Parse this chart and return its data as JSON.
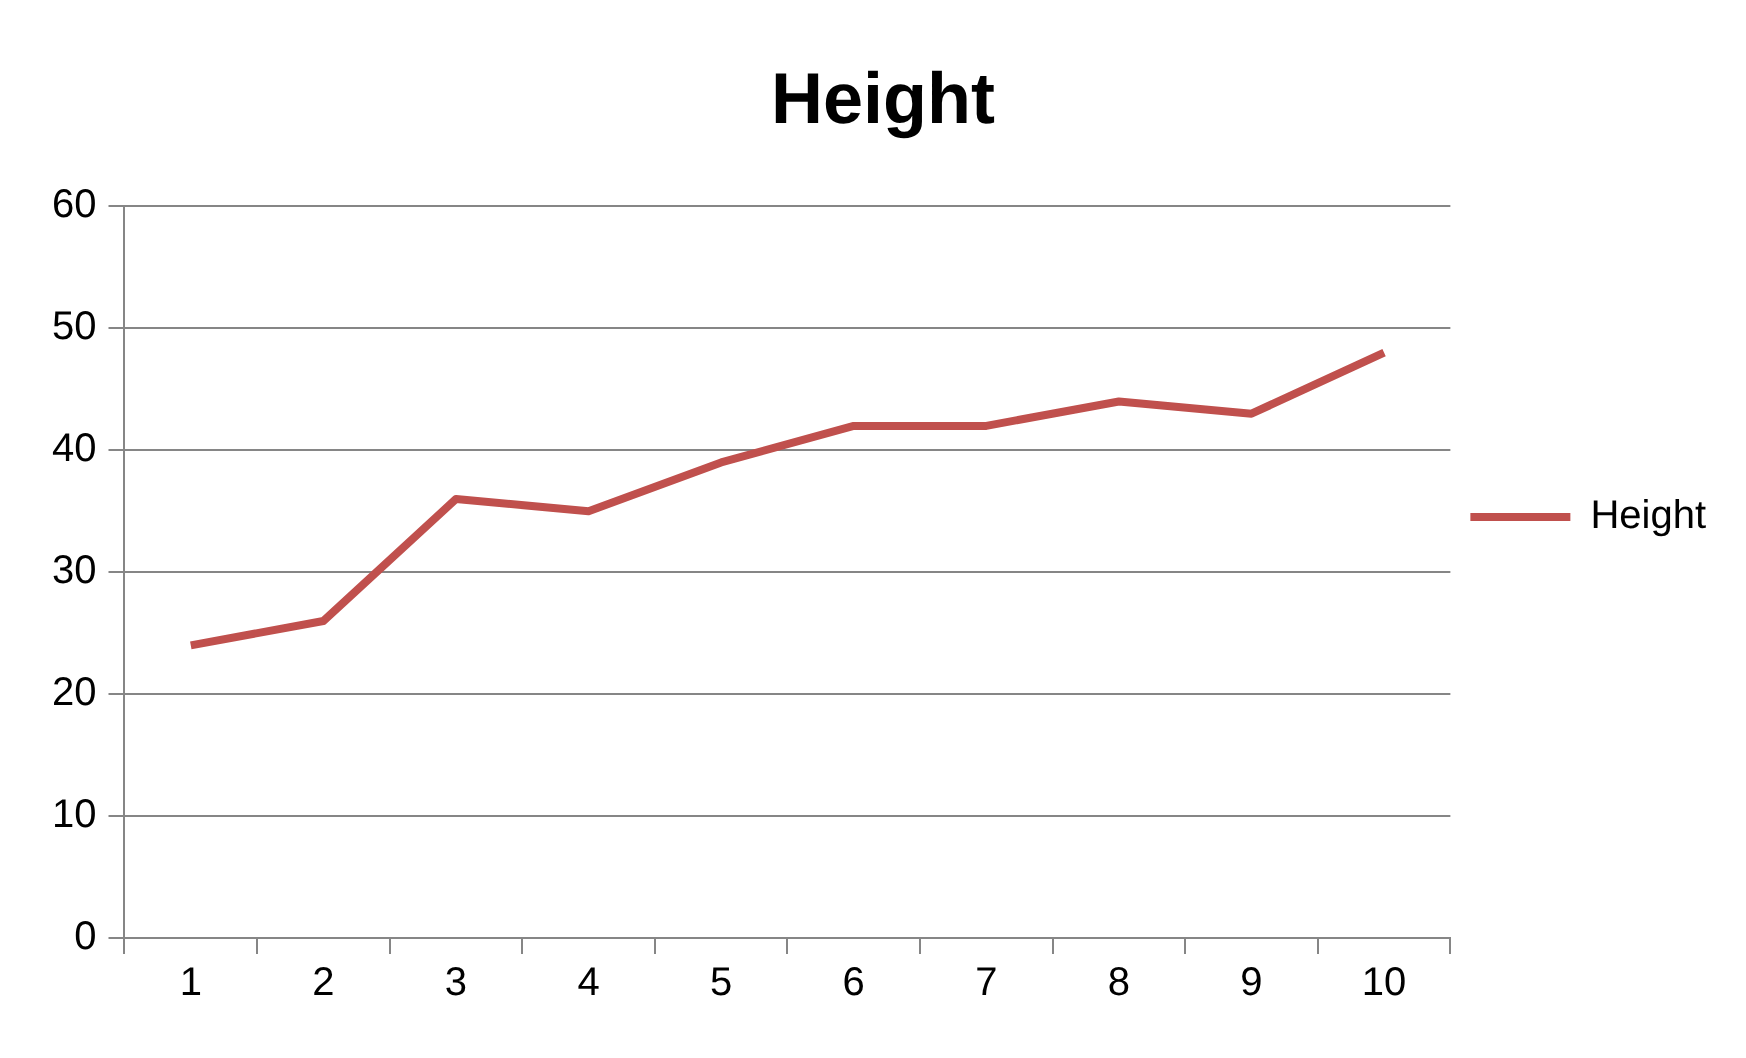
{
  "chart_data": {
    "type": "line",
    "title": "Height",
    "categories": [
      "1",
      "2",
      "3",
      "4",
      "5",
      "6",
      "7",
      "8",
      "9",
      "10"
    ],
    "series": [
      {
        "name": "Height",
        "color": "#c0504d",
        "values": [
          24,
          26,
          36,
          35,
          39,
          42,
          42,
          44,
          43,
          48
        ]
      }
    ],
    "ylim": [
      0,
      60
    ],
    "yticks": [
      0,
      10,
      20,
      30,
      40,
      50,
      60
    ],
    "grid": "y",
    "legend": "right",
    "marker": "none",
    "line_style": "solid"
  }
}
